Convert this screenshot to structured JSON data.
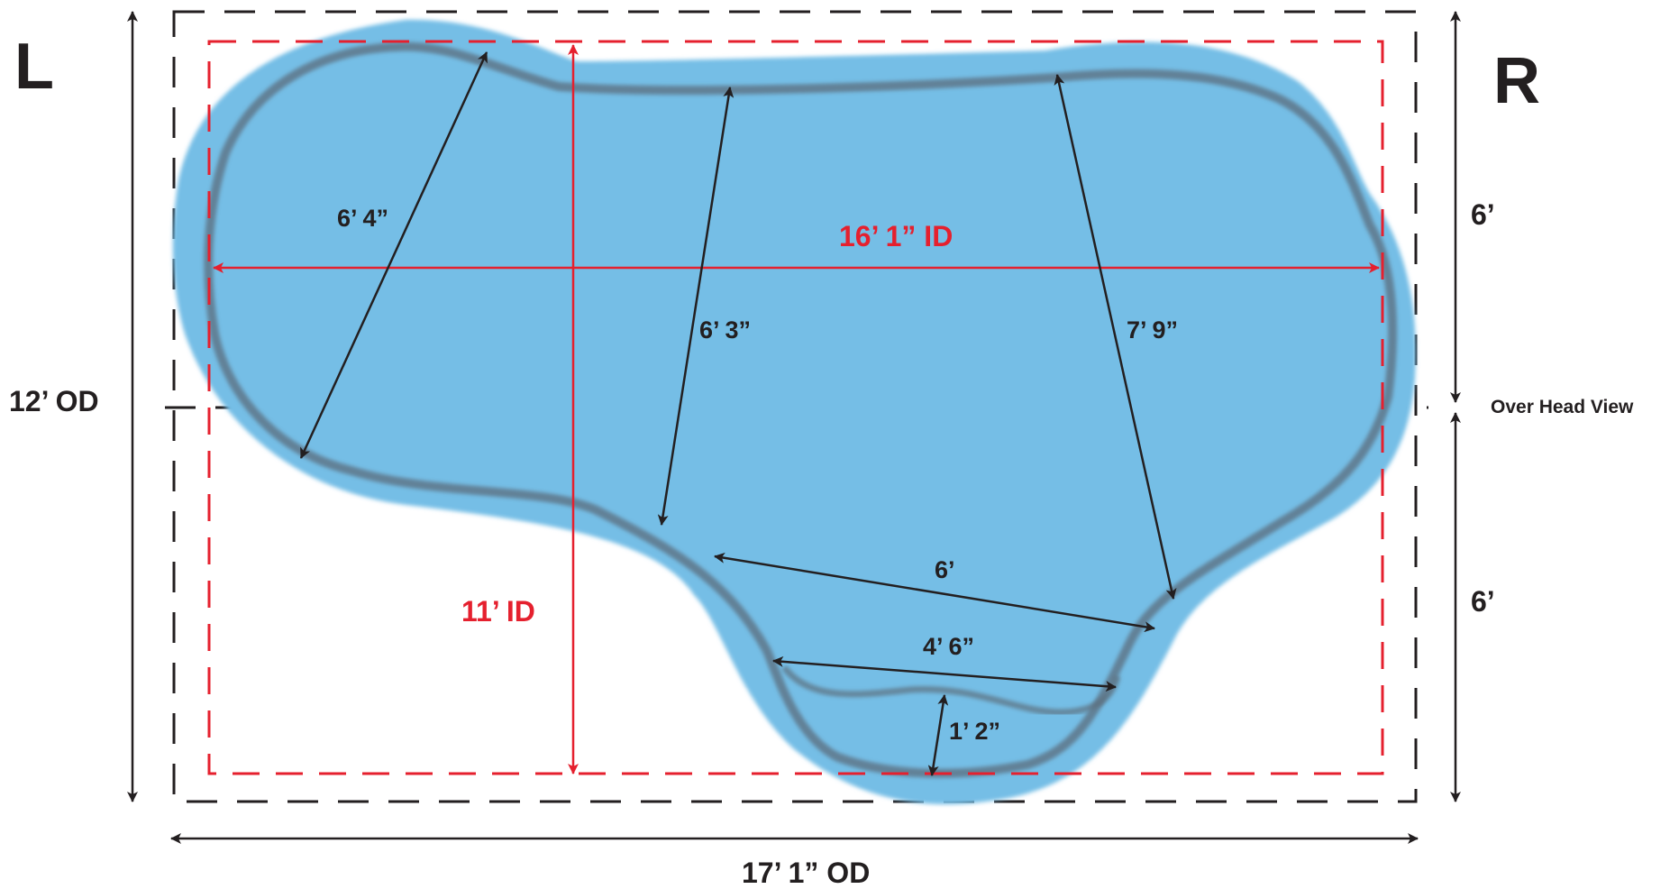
{
  "side_labels": {
    "left": "L",
    "right": "R"
  },
  "view_label": "Over Head View",
  "outer_dimensions": {
    "length": "17’ 1” OD",
    "width": "12’ OD",
    "upper_half": "6’",
    "lower_half": "6’"
  },
  "inner_dimensions": {
    "length": "16’ 1” ID",
    "width": "11’ ID"
  },
  "measurements": {
    "left_lobe": "6’ 4”",
    "middle_span": "6’ 3”",
    "right_span": "7’ 9”",
    "step_top": "6’",
    "step_middle": "4’ 6”",
    "step_depth": "1’ 2”"
  },
  "colors": {
    "water": "#74bee6",
    "rim": "#5b6d7c",
    "inner_box": "#e5202e",
    "outer_box": "#231f20",
    "text_dark": "#231f20",
    "text_red": "#e5202e"
  }
}
